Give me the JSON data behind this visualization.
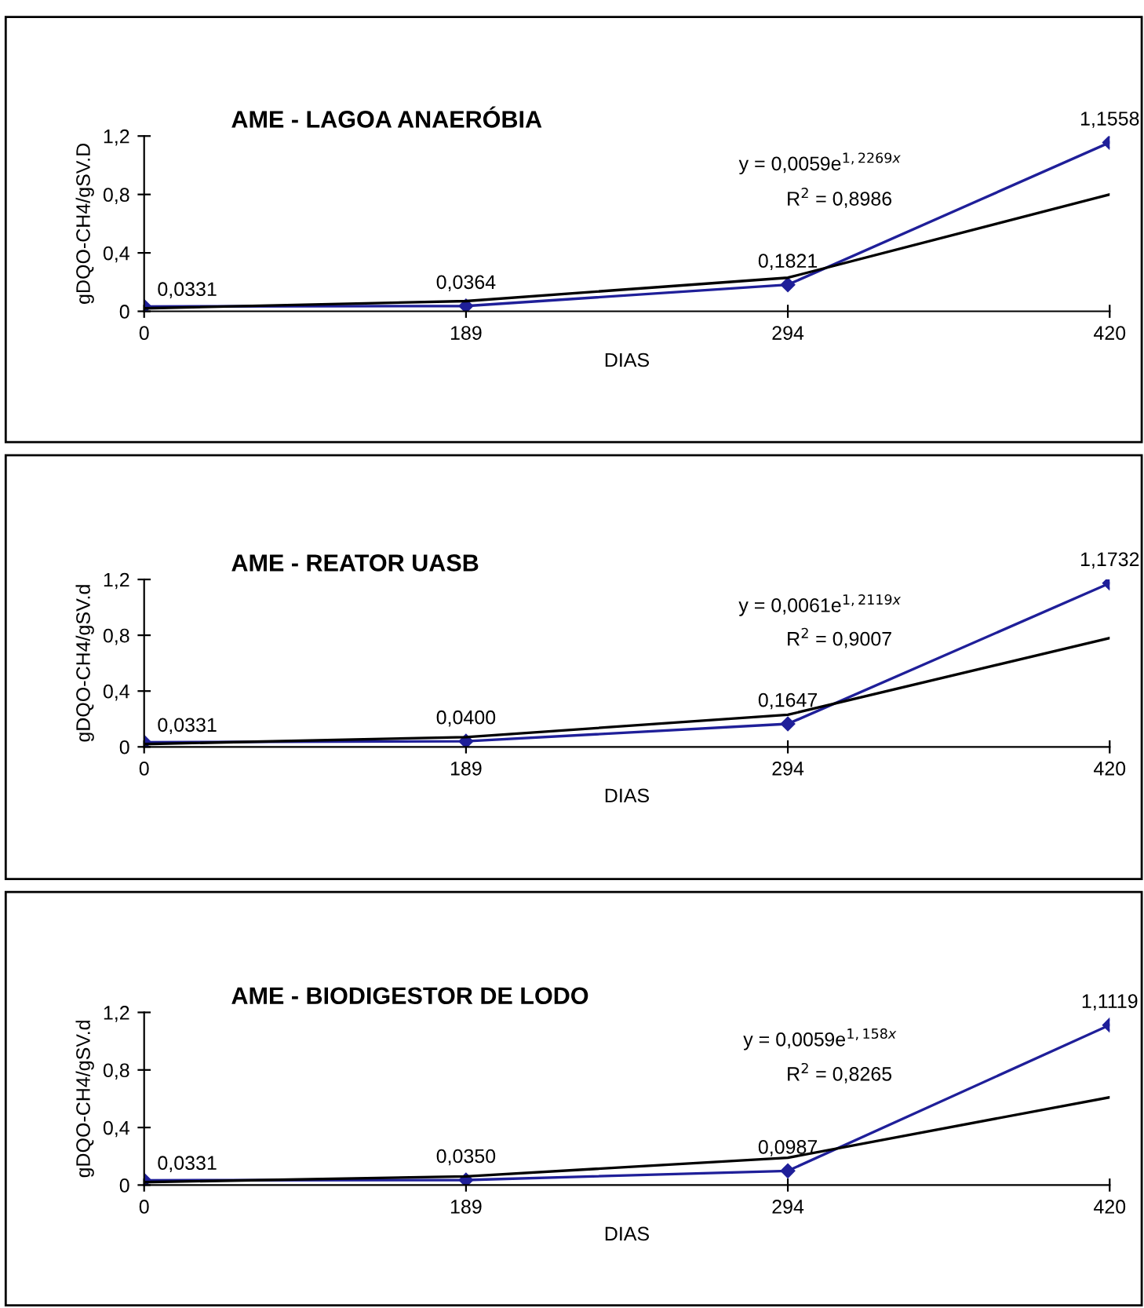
{
  "chart_data": [
    {
      "type": "line",
      "title": "AME - LAGOA ANAERÓBIA",
      "xlabel": "DIAS",
      "ylabel": "gDQO-CH4/gSV.D",
      "categories": [
        "0",
        "189",
        "294",
        "420"
      ],
      "series": [
        {
          "color": "#1f1f99",
          "values": [
            0.0331,
            0.0364,
            0.1821,
            1.1558
          ],
          "value_labels": [
            "0,0331",
            "0,0364",
            "0,1821",
            "1,1558"
          ],
          "marker": "diamond"
        },
        {
          "type": "line",
          "color": "#000000",
          "x": [
            "0",
            "189",
            "294",
            "420"
          ],
          "values": [
            0.02,
            0.07,
            0.23,
            0.8
          ],
          "marker": "none"
        }
      ],
      "ylim": [
        0,
        1.2
      ],
      "yticks": [
        0,
        {
          "value": 0.4,
          "label": "0,4"
        },
        {
          "value": 0.8,
          "label": "0,8"
        },
        {
          "value": 1.2,
          "label": "1,2"
        }
      ],
      "annotations": [
        "y = 0,0059e$^{1,2269x}$",
        "R$^{2}$ = 0,8986"
      ],
      "legend": false,
      "grid": false
    },
    {
      "type": "line",
      "title": "AME - REATOR UASB",
      "xlabel": "DIAS",
      "ylabel": "gDQO-CH4/gSV.d",
      "categories": [
        "0",
        "189",
        "294",
        "420"
      ],
      "series": [
        {
          "color": "#1f1f99",
          "values": [
            0.0331,
            0.04,
            0.1647,
            1.1732
          ],
          "value_labels": [
            "0,0331",
            "0,0400",
            "0,1647",
            "1,1732"
          ],
          "marker": "diamond"
        },
        {
          "type": "line",
          "color": "#000000",
          "x": [
            "0",
            "189",
            "294",
            "420"
          ],
          "values": [
            0.02,
            0.07,
            0.23,
            0.78
          ],
          "marker": "none"
        }
      ],
      "ylim": [
        0,
        1.2
      ],
      "yticks": [
        0,
        {
          "value": 0.4,
          "label": "0,4"
        },
        {
          "value": 0.8,
          "label": "0,8"
        },
        {
          "value": 1.2,
          "label": "1,2"
        }
      ],
      "annotations": [
        "y = 0,0061e$^{1,2119x}$",
        "R$^{2}$ = 0,9007"
      ],
      "legend": false,
      "grid": false
    },
    {
      "type": "line",
      "title": "AME - BIODIGESTOR DE LODO",
      "xlabel": "DIAS",
      "ylabel": "gDQO-CH4/gSV.d",
      "categories": [
        "0",
        "189",
        "294",
        "420"
      ],
      "series": [
        {
          "color": "#1f1f99",
          "values": [
            0.0331,
            0.035,
            0.0987,
            1.1119
          ],
          "value_labels": [
            "0,0331",
            "0,0350",
            "0,0987",
            "1,1119"
          ],
          "marker": "diamond"
        },
        {
          "type": "line",
          "color": "#000000",
          "x": [
            "0",
            "189",
            "294",
            "420"
          ],
          "values": [
            0.02,
            0.06,
            0.19,
            0.61
          ],
          "marker": "none"
        }
      ],
      "ylim": [
        0,
        1.2
      ],
      "yticks": [
        0,
        {
          "value": 0.4,
          "label": "0,4"
        },
        {
          "value": 0.8,
          "label": "0,8"
        },
        {
          "value": 1.2,
          "label": "1,2"
        }
      ],
      "annotations": [
        "y = 0,0059e$^{1,158x}$",
        "R$^{2}$ = 0,8265"
      ],
      "legend": false,
      "grid": false
    }
  ]
}
